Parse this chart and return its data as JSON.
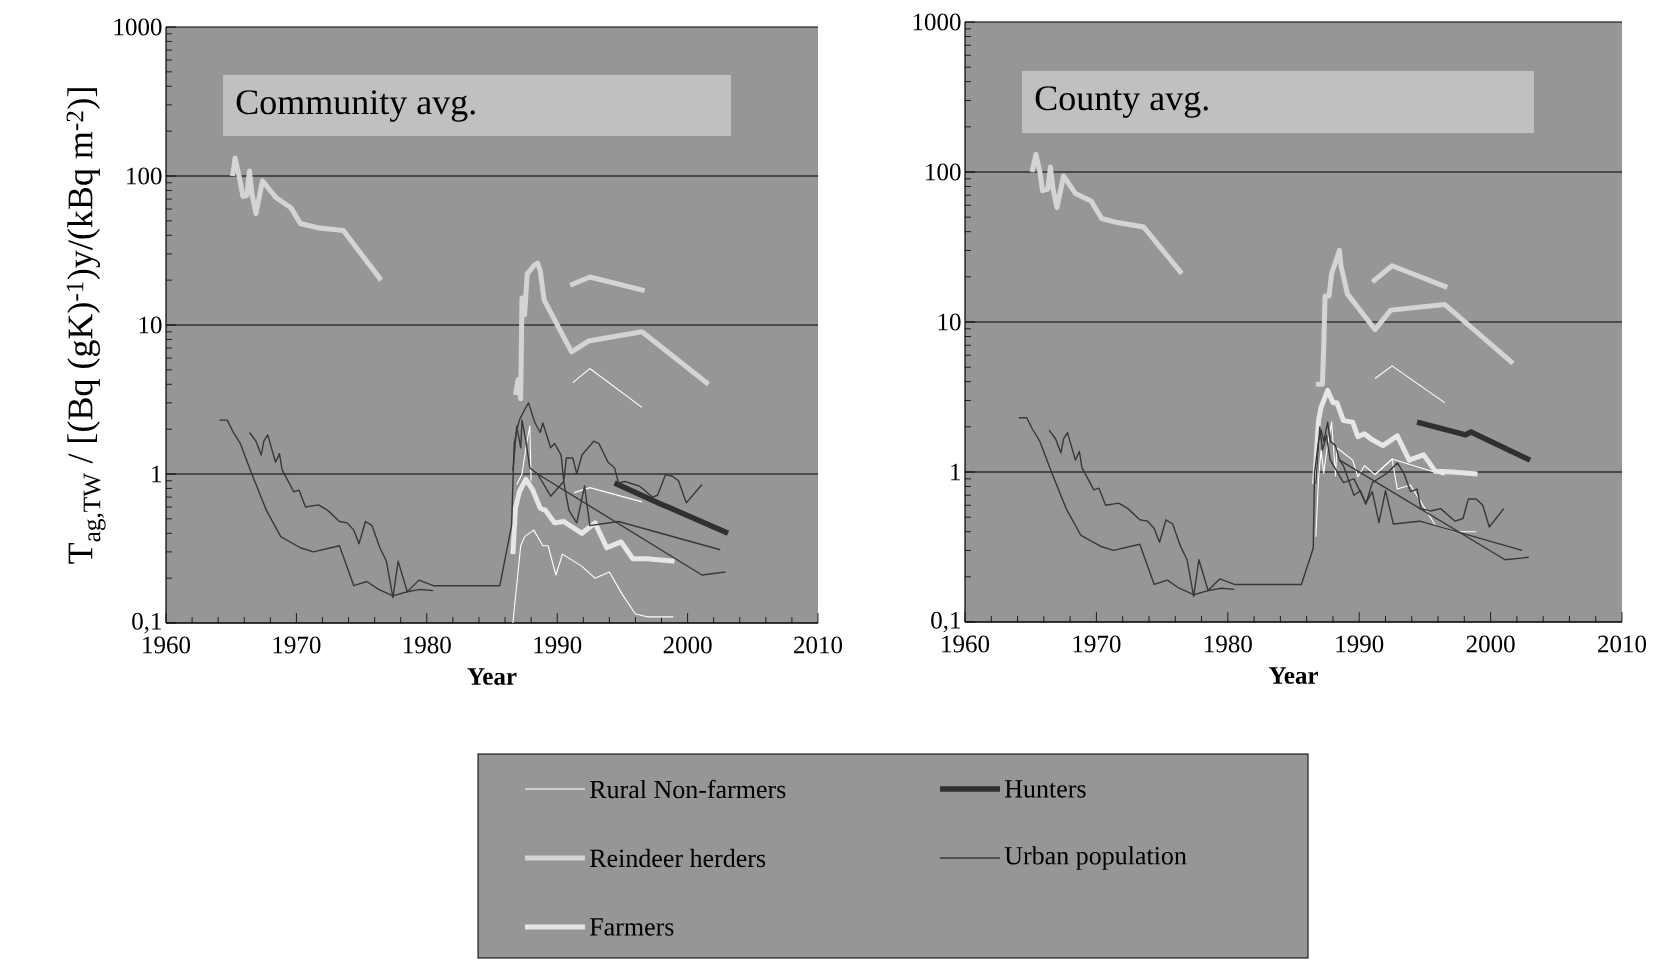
{
  "chart_data": [
    {
      "type": "line",
      "title": "Community avg.",
      "xlabel": "Year",
      "ylabel": "T$_{ag,TW}$ / [(Bq (gK)$^{-1}$)y/(kBq m$^{-2}$)]",
      "log": "y",
      "grid": "y",
      "legend": "bottom",
      "xlim": [
        1960,
        2010
      ],
      "ylim": [
        0.1,
        1000
      ],
      "xticks": [
        1960,
        1970,
        1980,
        1990,
        2000,
        2010
      ],
      "yticks": [
        {
          "value": 0.1,
          "label": "0,1"
        },
        1,
        10,
        100,
        1000
      ],
      "series": [
        {
          "name": "Rural Non-farmers",
          "color": "#ffffff",
          "x": [
            1986.6,
            1987.2,
            1987.5,
            1988.2,
            1988.9,
            1989.3,
            1989.9,
            1990.4,
            1991.9,
            1992.9,
            1994.0,
            1995.0,
            1996.0,
            1996.9,
            1998.9
          ],
          "values": [
            0.1,
            0.33,
            0.38,
            0.42,
            0.33,
            0.33,
            0.21,
            0.29,
            0.24,
            0.2,
            0.22,
            0.155,
            0.115,
            0.11,
            0.11
          ]
        },
        {
          "name": "Reindeer herders",
          "color": "#d4d4d4",
          "x": [
            1965.1,
            1965.3,
            1965.6,
            1965.9,
            1966.2,
            1966.4,
            1966.6,
            1966.9,
            1967.4,
            1968.4,
            1969.6,
            1970.3,
            1971.6,
            1973.6,
            1976.5
          ],
          "values": [
            100,
            132,
            100,
            73,
            74,
            108,
            75,
            56,
            93,
            72,
            61,
            48,
            45,
            43,
            20
          ]
        },
        {
          "name": "Farmers",
          "color": "#e6e6e6",
          "x": [
            1986.6,
            1986.8,
            1987.1,
            1987.6,
            1988.1,
            1988.7,
            1989.1,
            1989.8,
            1990.5,
            1991.9,
            1992.9,
            1993.8,
            1994.9,
            1995.8,
            1996.9,
            1999.0
          ],
          "values": [
            0.29,
            0.59,
            0.76,
            0.92,
            0.79,
            0.59,
            0.57,
            0.47,
            0.48,
            0.4,
            0.47,
            0.32,
            0.35,
            0.27,
            0.27,
            0.26
          ]
        },
        {
          "name": "Hunters",
          "color": "#303030",
          "x": [
            1994.4,
            1998.1,
            1998.5,
            2003.1
          ],
          "values": [
            0.87,
            0.62,
            0.6,
            0.4
          ]
        },
        {
          "name": "Urban population",
          "color": "#383838",
          "x": [
            1964.1,
            1964.7,
            1965.1,
            1965.7,
            1966.6,
            1967.7,
            1968.8,
            1970.3,
            1971.3,
            1973.3,
            1974.4,
            1975.4,
            1976.3,
            1977.4,
            1978.5,
            1979.5,
            1980.5
          ],
          "values": [
            2.3,
            2.3,
            1.95,
            1.6,
            0.99,
            0.57,
            0.38,
            0.32,
            0.3,
            0.33,
            0.178,
            0.19,
            0.168,
            0.152,
            0.162,
            0.168,
            0.165
          ]
        },
        {
          "color": "#d4d4d4",
          "x": [
            1986.8,
            1987.0,
            1987.2,
            1987.3,
            1987.5,
            1987.7,
            1988.2,
            1988.5,
            1988.7,
            1989.0,
            1991.1,
            1992.4,
            1996.5,
            2001.6
          ],
          "values": [
            3.4,
            4.3,
            3.2,
            15.2,
            11.7,
            22,
            25,
            26,
            23,
            14.7,
            6.6,
            7.8,
            9.0,
            4.0
          ]
        },
        {
          "color": "#d4d4d4",
          "x": [
            1991.0,
            1992.5,
            1996.7
          ],
          "values": [
            18.5,
            21,
            17
          ]
        },
        {
          "color": "#ffffff",
          "x": [
            1991.2,
            1992.5,
            1996.5
          ],
          "values": [
            4.1,
            5.1,
            2.8
          ]
        },
        {
          "color": "#ffffff",
          "x": [
            1991.3,
            1992.5,
            1996.5
          ],
          "values": [
            0.75,
            0.81,
            0.65
          ]
        },
        {
          "color": "#ffffff",
          "x": [
            1986.9,
            1987.3,
            1987.6,
            1987.9,
            1988.0
          ],
          "values": [
            0.85,
            1.0,
            1.5,
            2.1,
            0.9
          ]
        },
        {
          "color": "#383838",
          "x": [
            1966.4,
            1966.9,
            1967.3,
            1967.5,
            1967.8,
            1968.4,
            1968.7,
            1968.9,
            1969.8,
            1970.2,
            1970.7,
            1971.7,
            1972.4,
            1973.3,
            1973.9,
            1974.4,
            1974.8,
            1975.3,
            1975.8,
            1976.4,
            1976.9,
            1977.4,
            1977.8,
            1978.5,
            1979.4,
            1980.5,
            1985.6,
            1986.5,
            1986.7,
            1986.9,
            1987.1,
            1987.5,
            1987.8,
            1988.3,
            1988.7,
            1988.9,
            1989.5,
            1989.8,
            1990.3,
            1990.5,
            1990.7,
            1991.2,
            1991.5,
            1991.9,
            1992.8,
            1993.2,
            1993.9,
            1994.4,
            1994.7,
            1995.2,
            1996.3,
            1997.3,
            1997.7,
            1998.3,
            1998.8,
            1999.3,
            1999.9,
            2001.1
          ],
          "values": [
            1.9,
            1.66,
            1.34,
            1.66,
            1.83,
            1.2,
            1.37,
            1.07,
            0.76,
            0.78,
            0.6,
            0.62,
            0.57,
            0.48,
            0.47,
            0.42,
            0.34,
            0.48,
            0.45,
            0.32,
            0.26,
            0.148,
            0.26,
            0.162,
            0.194,
            0.178,
            0.178,
            0.45,
            1.6,
            1.95,
            2.3,
            2.7,
            3.0,
            2.2,
            1.9,
            2.2,
            1.5,
            1.6,
            1.34,
            0.89,
            1.28,
            1.28,
            1.0,
            1.34,
            1.66,
            1.6,
            1.2,
            1.1,
            0.87,
            0.89,
            0.83,
            0.7,
            0.72,
            0.99,
            0.97,
            0.9,
            0.64,
            0.85
          ]
        },
        {
          "color": "#383838",
          "x": [
            1986.6,
            1986.9,
            1987.2,
            1987.3,
            1987.6,
            1987.9,
            1988.5,
            1989.5,
            1990.5,
            1990.9,
            1991.5,
            1992.1,
            1992.5,
            1994.7,
            2002.5
          ],
          "values": [
            1.05,
            2.1,
            1.5,
            2.3,
            1.66,
            1.1,
            1.0,
            0.71,
            0.89,
            0.57,
            0.47,
            0.83,
            0.45,
            0.48,
            0.31
          ]
        },
        {
          "color": "#383838",
          "x": [
            1988.5,
            2001.1,
            2002.9
          ],
          "values": [
            1.0,
            0.21,
            0.22
          ]
        }
      ]
    },
    {
      "type": "line",
      "title": "County avg.",
      "xlabel": "Year",
      "log": "y",
      "grid": "y",
      "xlim": [
        1960,
        2010
      ],
      "ylim": [
        0.1,
        1000
      ],
      "xticks": [
        1960,
        1970,
        1980,
        1990,
        2000,
        2010
      ],
      "yticks": [
        {
          "value": 0.1,
          "label": "0,1"
        },
        1,
        10,
        100,
        1000
      ],
      "series": [
        {
          "color": "#d4d4d4",
          "x": [
            1965.1,
            1965.4,
            1965.7,
            1965.9,
            1966.3,
            1966.5,
            1966.7,
            1967.0,
            1967.5,
            1968.4,
            1969.6,
            1970.4,
            1971.6,
            1973.6,
            1976.5
          ],
          "values": [
            100,
            131,
            100,
            75,
            77,
            108,
            77,
            58,
            94,
            72,
            64,
            49,
            46,
            43,
            21
          ]
        },
        {
          "color": "#d4d4d4",
          "x": [
            1986.7,
            1987.2,
            1987.3,
            1987.4,
            1987.7,
            1987.9,
            1988.5,
            1988.6,
            1989.1,
            1991.2,
            1992.4,
            1996.5,
            2001.7
          ],
          "values": [
            3.85,
            3.85,
            6.9,
            14.9,
            14.9,
            21,
            30,
            24,
            15.4,
            8.9,
            12,
            13.1,
            5.3
          ]
        },
        {
          "color": "#d4d4d4",
          "x": [
            1991.0,
            1992.5,
            1996.7
          ],
          "values": [
            18.5,
            23.7,
            17
          ]
        },
        {
          "color": "#ffffff",
          "x": [
            1991.2,
            1992.5,
            1996.5
          ],
          "values": [
            4.2,
            5.1,
            2.9
          ]
        },
        {
          "color": "#ffffff",
          "x": [
            1986.7,
            1986.9,
            1987.1,
            1987.3,
            1987.5,
            1987.9,
            1988.2,
            1988.3,
            1989.5,
            1989.9,
            1990.4,
            1991.2,
            1992.5,
            1992.9,
            1993.9,
            1995.8,
            1997.3,
            1998.9
          ],
          "values": [
            0.37,
            0.9,
            1.4,
            0.98,
            1.35,
            2.15,
            0.94,
            1.45,
            1.2,
            0.93,
            1.1,
            0.96,
            1.22,
            0.77,
            0.82,
            0.44,
            0.4,
            0.4
          ]
        },
        {
          "color": "#ffffff",
          "x": [
            1991.2,
            1992.5,
            1996.5
          ],
          "values": [
            0.96,
            1.22,
            0.95
          ]
        },
        {
          "color": "#e6e6e6",
          "x": [
            1986.6,
            1986.9,
            1987.1,
            1987.6,
            1988.0,
            1988.3,
            1988.8,
            1989.5,
            1989.9,
            1990.4,
            1990.9,
            1991.8,
            1992.9,
            1993.8,
            1994.9,
            1995.8,
            1997.1,
            1999.0
          ],
          "values": [
            0.83,
            2.2,
            2.7,
            3.5,
            2.9,
            2.9,
            2.2,
            2.15,
            1.72,
            1.8,
            1.66,
            1.5,
            1.74,
            1.2,
            1.3,
            1.01,
            1.0,
            0.97
          ]
        },
        {
          "color": "#303030",
          "x": [
            1994.4,
            1998.1,
            1998.5,
            2003.0
          ],
          "values": [
            2.15,
            1.77,
            1.85,
            1.2
          ]
        },
        {
          "color": "#383838",
          "x": [
            1964.1,
            1964.7,
            1965.1,
            1965.7,
            1966.6,
            1967.7,
            1968.8,
            1970.3,
            1971.3,
            1973.3,
            1974.4,
            1975.4,
            1976.3,
            1977.4,
            1978.5,
            1979.5,
            1980.5
          ],
          "values": [
            2.3,
            2.3,
            1.95,
            1.6,
            0.99,
            0.57,
            0.38,
            0.32,
            0.3,
            0.33,
            0.178,
            0.19,
            0.168,
            0.152,
            0.162,
            0.168,
            0.165
          ]
        },
        {
          "color": "#383838",
          "x": [
            1966.4,
            1966.9,
            1967.3,
            1967.5,
            1967.8,
            1968.4,
            1968.7,
            1968.9,
            1969.8,
            1970.2,
            1970.7,
            1971.7,
            1972.4,
            1973.3,
            1973.9,
            1974.4,
            1974.8,
            1975.3,
            1975.8,
            1976.4,
            1976.9,
            1977.4,
            1977.8,
            1978.5,
            1979.4,
            1980.5,
            1985.6,
            1986.5,
            1986.6,
            1986.9,
            1987.1,
            1987.3,
            1987.6,
            1987.8,
            1988.2,
            1988.5,
            1988.8,
            1989.6,
            1990.1,
            1990.5,
            1991.0,
            1991.7,
            1992.1,
            1992.9,
            1993.4,
            1993.9,
            1994.4,
            1994.7,
            1995.4,
            1996.2,
            1997.3,
            1997.9,
            1998.3,
            1998.9,
            1999.4,
            1999.9,
            2001.0
          ],
          "values": [
            1.9,
            1.66,
            1.34,
            1.66,
            1.83,
            1.2,
            1.37,
            1.07,
            0.76,
            0.78,
            0.6,
            0.62,
            0.57,
            0.48,
            0.47,
            0.42,
            0.34,
            0.48,
            0.45,
            0.32,
            0.26,
            0.148,
            0.26,
            0.162,
            0.194,
            0.178,
            0.178,
            0.31,
            0.98,
            1.6,
            1.9,
            1.6,
            2.15,
            1.6,
            1.5,
            1.2,
            1.1,
            0.7,
            0.75,
            0.61,
            0.85,
            0.93,
            0.98,
            1.15,
            0.98,
            0.74,
            0.77,
            0.57,
            0.55,
            0.57,
            0.47,
            0.49,
            0.66,
            0.66,
            0.6,
            0.43,
            0.57
          ]
        },
        {
          "color": "#383838",
          "x": [
            1986.7,
            1987.0,
            1987.2,
            1987.5,
            1987.8,
            1988.8,
            1989.6,
            1990.5,
            1991.0,
            1991.5,
            1992.0,
            1992.6,
            1994.6,
            2002.4
          ],
          "values": [
            0.83,
            2.0,
            1.4,
            1.75,
            1.2,
            0.85,
            0.9,
            0.62,
            0.74,
            0.46,
            0.75,
            0.45,
            0.47,
            0.3
          ]
        },
        {
          "color": "#383838",
          "x": [
            1988.5,
            2001.1,
            2002.9
          ],
          "values": [
            1.2,
            0.26,
            0.27
          ]
        }
      ]
    }
  ]
}
